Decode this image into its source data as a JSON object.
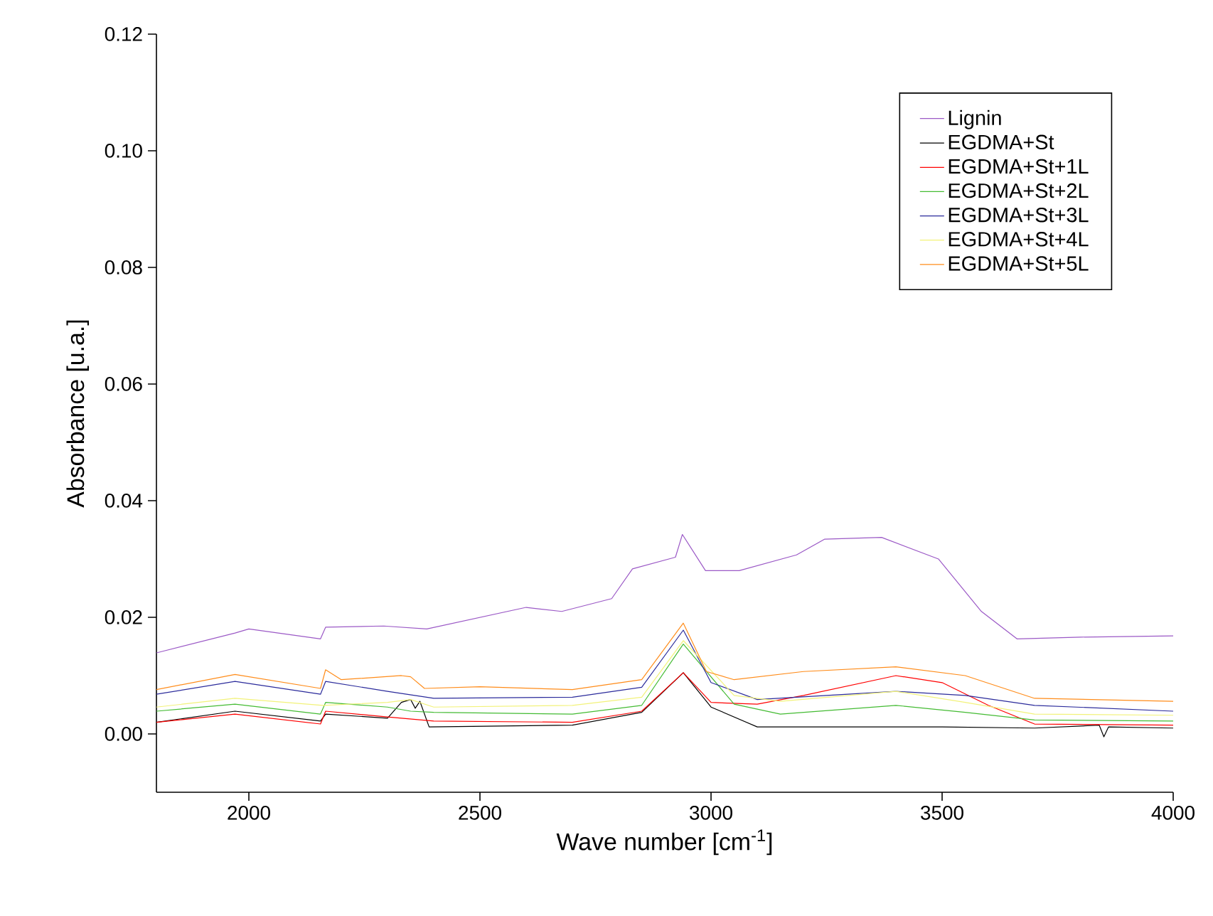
{
  "chart_data": {
    "type": "line",
    "xlabel": "Wave number [cm$^{-1}$]",
    "ylabel": "Absorbance [u.a.]",
    "xlim": [
      1800,
      4000
    ],
    "ylim": [
      -0.01,
      0.12
    ],
    "xticks": [
      2000,
      2500,
      3000,
      3500,
      4000
    ],
    "yticks": [
      {
        "value": 0,
        "label": "0.00"
      },
      {
        "value": 0.02,
        "label": "0.02"
      },
      {
        "value": 0.04,
        "label": "0.04"
      },
      {
        "value": 0.06,
        "label": "0.06"
      },
      {
        "value": 0.08,
        "label": "0.08"
      },
      {
        "value": 0.1,
        "label": "0.10"
      },
      {
        "value": 0.12,
        "label": "0.12"
      }
    ],
    "legend": "top right",
    "grid": false,
    "marker": "none",
    "line_style": "solid",
    "series": [
      {
        "name": "Lignin",
        "color": "#9b59c6",
        "x": [
          1800,
          1970,
          2000,
          2155,
          2166,
          2292,
          2385,
          2600,
          2677,
          2785,
          2830,
          2923,
          2938,
          2988,
          3061,
          3185,
          3246,
          3369,
          3492,
          3585,
          3662,
          3800,
          4000
        ],
        "values": [
          0.0139,
          0.0173,
          0.018,
          0.0163,
          0.0183,
          0.0185,
          0.018,
          0.0217,
          0.021,
          0.0232,
          0.0283,
          0.0303,
          0.0342,
          0.028,
          0.028,
          0.0307,
          0.0334,
          0.0337,
          0.03,
          0.021,
          0.0163,
          0.0166,
          0.0168
        ]
      },
      {
        "name": "EGDMA+St",
        "color": "#000000",
        "x": [
          1800,
          1970,
          2155,
          2166,
          2300,
          2330,
          2350,
          2360,
          2370,
          2390,
          2700,
          2850,
          2940,
          3000,
          3100,
          3500,
          3700,
          3840,
          3850,
          3860,
          4000
        ],
        "values": [
          0.002,
          0.0039,
          0.0022,
          0.0034,
          0.0027,
          0.0054,
          0.0059,
          0.0044,
          0.0056,
          0.0012,
          0.0015,
          0.0037,
          0.0105,
          0.0046,
          0.0012,
          0.0012,
          0.001,
          0.0015,
          -0.0005,
          0.0012,
          0.001
        ]
      },
      {
        "name": "EGDMA+St+1L",
        "color": "#ff0000",
        "x": [
          1800,
          1970,
          2155,
          2166,
          2300,
          2400,
          2700,
          2850,
          2940,
          3000,
          3100,
          3200,
          3400,
          3500,
          3600,
          3700,
          4000
        ],
        "values": [
          0.002,
          0.0034,
          0.0017,
          0.0039,
          0.0029,
          0.0022,
          0.002,
          0.0039,
          0.0105,
          0.0054,
          0.0051,
          0.0066,
          0.01,
          0.0088,
          0.0049,
          0.0017,
          0.0015
        ]
      },
      {
        "name": "EGDMA+St+2L",
        "color": "#44bb33",
        "x": [
          1800,
          1970,
          2155,
          2166,
          2300,
          2350,
          2400,
          2700,
          2850,
          2940,
          3050,
          3150,
          3400,
          3550,
          3700,
          4000
        ],
        "values": [
          0.0039,
          0.0051,
          0.0034,
          0.0054,
          0.0046,
          0.0039,
          0.0037,
          0.0034,
          0.0049,
          0.0154,
          0.0051,
          0.0034,
          0.0049,
          0.0037,
          0.0024,
          0.0022
        ]
      },
      {
        "name": "EGDMA+St+3L",
        "color": "#2b2b9b",
        "x": [
          1800,
          1970,
          2155,
          2166,
          2300,
          2400,
          2700,
          2850,
          2940,
          3000,
          3100,
          3400,
          3550,
          3700,
          4000
        ],
        "values": [
          0.0068,
          0.009,
          0.0068,
          0.009,
          0.0073,
          0.0061,
          0.0063,
          0.008,
          0.0178,
          0.0088,
          0.0059,
          0.0073,
          0.0066,
          0.0049,
          0.0039
        ]
      },
      {
        "name": "EGDMA+St+4L",
        "color": "#f2f27a",
        "x": [
          1800,
          1970,
          2160,
          2300,
          2350,
          2400,
          2700,
          2850,
          2940,
          3050,
          3150,
          3400,
          3550,
          3700,
          4000
        ],
        "values": [
          0.0046,
          0.0061,
          0.0049,
          0.0054,
          0.0059,
          0.0046,
          0.0049,
          0.0063,
          0.016,
          0.0066,
          0.0056,
          0.0073,
          0.0054,
          0.0034,
          0.0032
        ]
      },
      {
        "name": "EGDMA+St+5L",
        "color": "#ff8c1a",
        "x": [
          1800,
          1970,
          2155,
          2166,
          2200,
          2330,
          2350,
          2380,
          2500,
          2700,
          2850,
          2940,
          2990,
          3050,
          3200,
          3400,
          3550,
          3700,
          4000
        ],
        "values": [
          0.0076,
          0.0102,
          0.0078,
          0.011,
          0.0093,
          0.01,
          0.0098,
          0.0078,
          0.0081,
          0.0076,
          0.0093,
          0.019,
          0.0107,
          0.0093,
          0.0107,
          0.0115,
          0.01,
          0.0061,
          0.0056
        ]
      }
    ]
  }
}
